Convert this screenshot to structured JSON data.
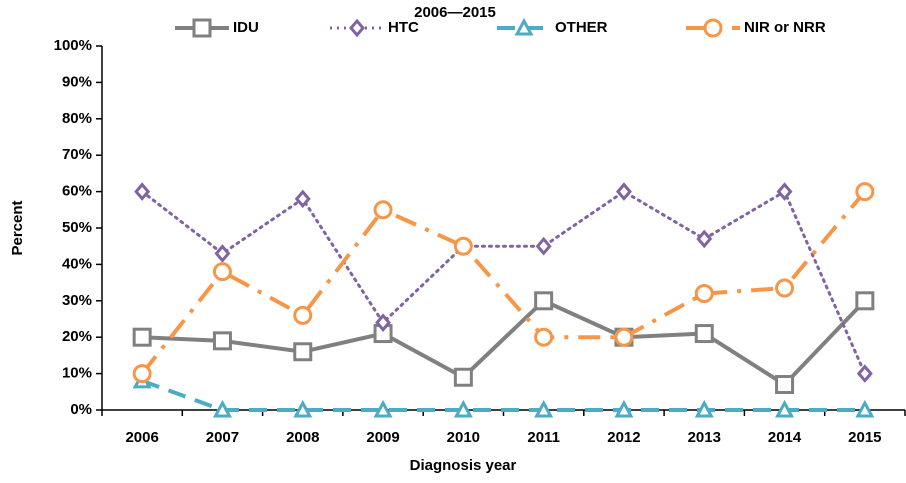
{
  "chart_data": {
    "type": "line",
    "title": "2006—2015",
    "x_label": "Diagnosis year",
    "y_label": "Percent",
    "categories": [
      "2006",
      "2007",
      "2008",
      "2009",
      "2010",
      "2011",
      "2012",
      "2013",
      "2014",
      "2015"
    ],
    "series": [
      {
        "name": "IDU",
        "color": "#808080",
        "line_style": "solid",
        "marker": "square",
        "values": [
          20,
          19,
          16,
          21,
          9,
          30,
          20,
          21,
          7,
          30
        ]
      },
      {
        "name": "HTC",
        "color": "#8064a2",
        "line_style": "dotted",
        "marker": "diamond",
        "values": [
          60,
          43,
          58,
          24,
          45,
          45,
          60,
          47,
          60,
          10
        ]
      },
      {
        "name": "OTHER",
        "color": "#4bacc6",
        "line_style": "dashed",
        "marker": "triangle",
        "values": [
          8,
          0,
          0,
          0,
          0,
          0,
          0,
          0,
          0,
          0
        ]
      },
      {
        "name": "NIR or NRR",
        "color": "#f79646",
        "line_style": "dashdot",
        "marker": "circle",
        "values": [
          10,
          38,
          26,
          55,
          45,
          20,
          20,
          32,
          33.5,
          60
        ]
      }
    ],
    "ylim": [
      0,
      100
    ],
    "yticks": [
      {
        "value": 0,
        "label": "0%"
      },
      {
        "value": 10,
        "label": "10%"
      },
      {
        "value": 20,
        "label": "20%"
      },
      {
        "value": 30,
        "label": "30%"
      },
      {
        "value": 40,
        "label": "40%"
      },
      {
        "value": 50,
        "label": "50%"
      },
      {
        "value": 60,
        "label": "60%"
      },
      {
        "value": 70,
        "label": "70%"
      },
      {
        "value": 80,
        "label": "80%"
      },
      {
        "value": 90,
        "label": "90%"
      },
      {
        "value": 100,
        "label": "100%"
      }
    ],
    "grid": false,
    "legend": "top"
  }
}
